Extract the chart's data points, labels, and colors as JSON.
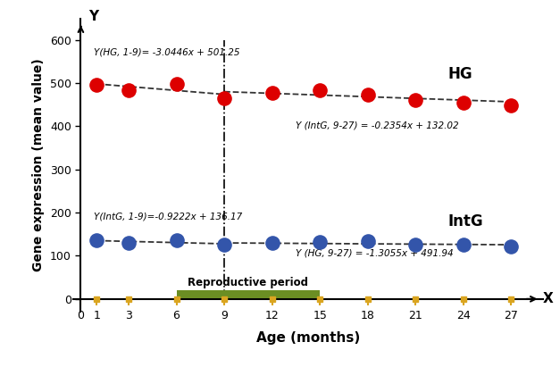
{
  "hg_x": [
    1,
    3,
    6,
    9,
    12,
    15,
    18,
    21,
    24,
    27
  ],
  "hg_y": [
    497,
    484,
    499,
    465,
    477,
    483,
    474,
    460,
    455,
    449
  ],
  "intg_x": [
    1,
    3,
    6,
    9,
    12,
    15,
    18,
    21,
    24,
    27
  ],
  "intg_y": [
    136,
    130,
    136,
    125,
    130,
    132,
    135,
    126,
    126,
    122
  ],
  "hg_color": "#dd0000",
  "intg_color": "#3355aa",
  "hg_eq1": "Y(HG, 1-9)= -3.0446x + 501.25",
  "hg_eq2": "Y (HG, 9-27) = -1.3055x + 491.94",
  "intg_eq1": "Y(IntG, 1-9)=-0.9222x + 136.17",
  "intg_eq2": "Y (IntG, 9-27) = -0.2354x + 132.02",
  "hg_label": "HG",
  "intg_label": "IntG",
  "repro_label": "Reproductive period",
  "repro_start": 6,
  "repro_end": 15,
  "vline_x": 9,
  "xlabel": "Age (months)",
  "ylabel": "Gene expression (mean value)",
  "xlim": [
    -0.5,
    29
  ],
  "ylim": [
    -30,
    650
  ],
  "yticks": [
    0,
    100,
    200,
    300,
    400,
    500,
    600
  ],
  "xticks": [
    0,
    1,
    3,
    6,
    9,
    12,
    15,
    18,
    21,
    24,
    27
  ],
  "xticklabels": [
    "0",
    "1",
    "3",
    "6",
    "9",
    "12",
    "15",
    "18",
    "21",
    "24",
    "27"
  ],
  "tick_color": "#DAA520",
  "background_color": "#ffffff",
  "repro_color": "#6b8e23",
  "dashed_color": "#333333",
  "marker_size": 120
}
